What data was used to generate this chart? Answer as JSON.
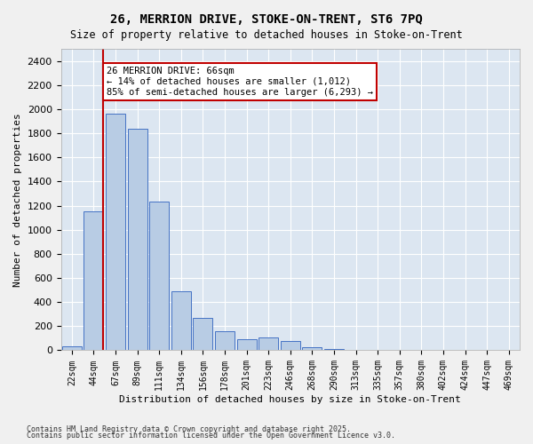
{
  "title_line1": "26, MERRION DRIVE, STOKE-ON-TRENT, ST6 7PQ",
  "title_line2": "Size of property relative to detached houses in Stoke-on-Trent",
  "xlabel": "Distribution of detached houses by size in Stoke-on-Trent",
  "ylabel": "Number of detached properties",
  "categories": [
    "22sqm",
    "44sqm",
    "67sqm",
    "89sqm",
    "111sqm",
    "134sqm",
    "156sqm",
    "178sqm",
    "201sqm",
    "223sqm",
    "246sqm",
    "268sqm",
    "290sqm",
    "313sqm",
    "335sqm",
    "357sqm",
    "380sqm",
    "402sqm",
    "424sqm",
    "447sqm",
    "469sqm"
  ],
  "values": [
    30,
    1155,
    1960,
    1840,
    1235,
    490,
    265,
    155,
    95,
    110,
    80,
    25,
    10,
    5,
    2,
    2,
    1,
    1,
    1,
    1,
    1
  ],
  "bar_color": "#b8cce4",
  "bar_edgecolor": "#4472c4",
  "bg_color": "#dce6f1",
  "grid_color": "#ffffff",
  "vline_x": 1,
  "vline_color": "#c00000",
  "annotation_text": "26 MERRION DRIVE: 66sqm\n← 14% of detached houses are smaller (1,012)\n85% of semi-detached houses are larger (6,293) →",
  "annotation_box_color": "#c00000",
  "ylim": [
    0,
    2500
  ],
  "yticks": [
    0,
    200,
    400,
    600,
    800,
    1000,
    1200,
    1400,
    1600,
    1800,
    2000,
    2200,
    2400
  ],
  "footnote1": "Contains HM Land Registry data © Crown copyright and database right 2025.",
  "footnote2": "Contains public sector information licensed under the Open Government Licence v3.0."
}
